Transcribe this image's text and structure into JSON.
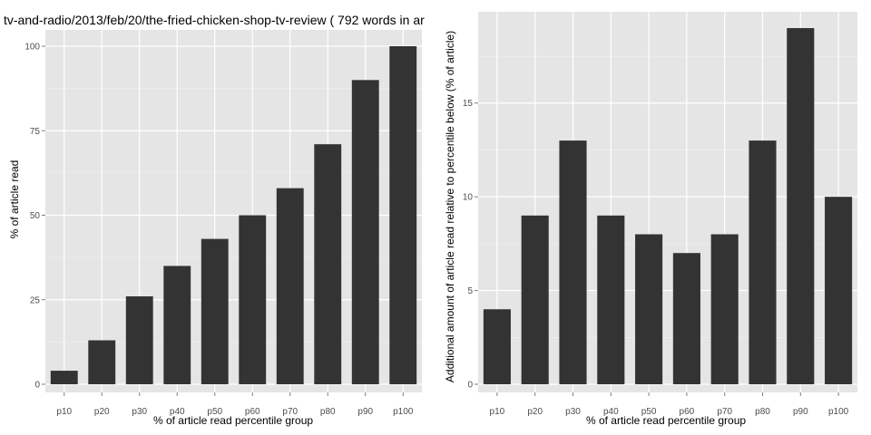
{
  "title": "tv-and-radio/2013/feb/20/the-fried-chicken-shop-tv-review ( 792 words in ar",
  "colors": {
    "panel": "#e5e5e5",
    "grid": "#ffffff",
    "bar": "#333333"
  },
  "chart_data": [
    {
      "type": "bar",
      "categories": [
        "p10",
        "p20",
        "p30",
        "p40",
        "p50",
        "p60",
        "p70",
        "p80",
        "p90",
        "p100"
      ],
      "values": [
        4,
        13,
        26,
        35,
        43,
        50,
        58,
        71,
        90,
        100
      ],
      "xlabel": "% of article read percentile group",
      "ylabel": "% of article read",
      "ylim": [
        0,
        100
      ],
      "yticks": [
        0,
        25,
        50,
        75,
        100
      ],
      "grid": true
    },
    {
      "type": "bar",
      "categories": [
        "p10",
        "p20",
        "p30",
        "p40",
        "p50",
        "p60",
        "p70",
        "p80",
        "p90",
        "p100"
      ],
      "values": [
        4,
        9,
        13,
        9,
        8,
        7,
        8,
        13,
        19,
        10
      ],
      "xlabel": "% of article read percentile group",
      "ylabel": "Additional amount of article read relative to percentile below (% of article)",
      "ylim": [
        0,
        19
      ],
      "yticks": [
        0,
        5,
        10,
        15
      ],
      "grid": true
    }
  ]
}
